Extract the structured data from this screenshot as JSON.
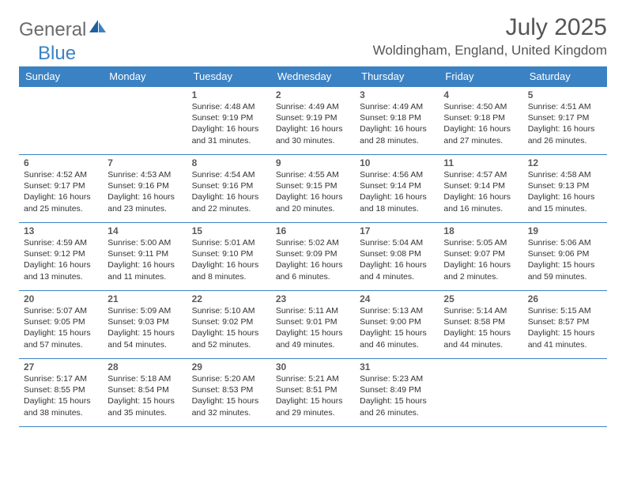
{
  "logo": {
    "text1": "General",
    "text2": "Blue"
  },
  "title": {
    "month_year": "July 2025",
    "location": "Woldingham, England, United Kingdom"
  },
  "colors": {
    "header_bg": "#3b82c4",
    "header_text": "#ffffff",
    "border": "#3b82c4",
    "body_text": "#333333",
    "title_text": "#555555",
    "logo_gray": "#6b6b6b",
    "logo_blue": "#3b82c4",
    "background": "#ffffff"
  },
  "typography": {
    "month_year_fontsize": 30,
    "location_fontsize": 17,
    "weekday_fontsize": 13,
    "daynum_fontsize": 12,
    "cell_fontsize": 10.5,
    "logo_fontsize": 24
  },
  "weekdays": [
    "Sunday",
    "Monday",
    "Tuesday",
    "Wednesday",
    "Thursday",
    "Friday",
    "Saturday"
  ],
  "weeks": [
    [
      null,
      null,
      {
        "day": "1",
        "sunrise": "Sunrise: 4:48 AM",
        "sunset": "Sunset: 9:19 PM",
        "daylight": "Daylight: 16 hours and 31 minutes."
      },
      {
        "day": "2",
        "sunrise": "Sunrise: 4:49 AM",
        "sunset": "Sunset: 9:19 PM",
        "daylight": "Daylight: 16 hours and 30 minutes."
      },
      {
        "day": "3",
        "sunrise": "Sunrise: 4:49 AM",
        "sunset": "Sunset: 9:18 PM",
        "daylight": "Daylight: 16 hours and 28 minutes."
      },
      {
        "day": "4",
        "sunrise": "Sunrise: 4:50 AM",
        "sunset": "Sunset: 9:18 PM",
        "daylight": "Daylight: 16 hours and 27 minutes."
      },
      {
        "day": "5",
        "sunrise": "Sunrise: 4:51 AM",
        "sunset": "Sunset: 9:17 PM",
        "daylight": "Daylight: 16 hours and 26 minutes."
      }
    ],
    [
      {
        "day": "6",
        "sunrise": "Sunrise: 4:52 AM",
        "sunset": "Sunset: 9:17 PM",
        "daylight": "Daylight: 16 hours and 25 minutes."
      },
      {
        "day": "7",
        "sunrise": "Sunrise: 4:53 AM",
        "sunset": "Sunset: 9:16 PM",
        "daylight": "Daylight: 16 hours and 23 minutes."
      },
      {
        "day": "8",
        "sunrise": "Sunrise: 4:54 AM",
        "sunset": "Sunset: 9:16 PM",
        "daylight": "Daylight: 16 hours and 22 minutes."
      },
      {
        "day": "9",
        "sunrise": "Sunrise: 4:55 AM",
        "sunset": "Sunset: 9:15 PM",
        "daylight": "Daylight: 16 hours and 20 minutes."
      },
      {
        "day": "10",
        "sunrise": "Sunrise: 4:56 AM",
        "sunset": "Sunset: 9:14 PM",
        "daylight": "Daylight: 16 hours and 18 minutes."
      },
      {
        "day": "11",
        "sunrise": "Sunrise: 4:57 AM",
        "sunset": "Sunset: 9:14 PM",
        "daylight": "Daylight: 16 hours and 16 minutes."
      },
      {
        "day": "12",
        "sunrise": "Sunrise: 4:58 AM",
        "sunset": "Sunset: 9:13 PM",
        "daylight": "Daylight: 16 hours and 15 minutes."
      }
    ],
    [
      {
        "day": "13",
        "sunrise": "Sunrise: 4:59 AM",
        "sunset": "Sunset: 9:12 PM",
        "daylight": "Daylight: 16 hours and 13 minutes."
      },
      {
        "day": "14",
        "sunrise": "Sunrise: 5:00 AM",
        "sunset": "Sunset: 9:11 PM",
        "daylight": "Daylight: 16 hours and 11 minutes."
      },
      {
        "day": "15",
        "sunrise": "Sunrise: 5:01 AM",
        "sunset": "Sunset: 9:10 PM",
        "daylight": "Daylight: 16 hours and 8 minutes."
      },
      {
        "day": "16",
        "sunrise": "Sunrise: 5:02 AM",
        "sunset": "Sunset: 9:09 PM",
        "daylight": "Daylight: 16 hours and 6 minutes."
      },
      {
        "day": "17",
        "sunrise": "Sunrise: 5:04 AM",
        "sunset": "Sunset: 9:08 PM",
        "daylight": "Daylight: 16 hours and 4 minutes."
      },
      {
        "day": "18",
        "sunrise": "Sunrise: 5:05 AM",
        "sunset": "Sunset: 9:07 PM",
        "daylight": "Daylight: 16 hours and 2 minutes."
      },
      {
        "day": "19",
        "sunrise": "Sunrise: 5:06 AM",
        "sunset": "Sunset: 9:06 PM",
        "daylight": "Daylight: 15 hours and 59 minutes."
      }
    ],
    [
      {
        "day": "20",
        "sunrise": "Sunrise: 5:07 AM",
        "sunset": "Sunset: 9:05 PM",
        "daylight": "Daylight: 15 hours and 57 minutes."
      },
      {
        "day": "21",
        "sunrise": "Sunrise: 5:09 AM",
        "sunset": "Sunset: 9:03 PM",
        "daylight": "Daylight: 15 hours and 54 minutes."
      },
      {
        "day": "22",
        "sunrise": "Sunrise: 5:10 AM",
        "sunset": "Sunset: 9:02 PM",
        "daylight": "Daylight: 15 hours and 52 minutes."
      },
      {
        "day": "23",
        "sunrise": "Sunrise: 5:11 AM",
        "sunset": "Sunset: 9:01 PM",
        "daylight": "Daylight: 15 hours and 49 minutes."
      },
      {
        "day": "24",
        "sunrise": "Sunrise: 5:13 AM",
        "sunset": "Sunset: 9:00 PM",
        "daylight": "Daylight: 15 hours and 46 minutes."
      },
      {
        "day": "25",
        "sunrise": "Sunrise: 5:14 AM",
        "sunset": "Sunset: 8:58 PM",
        "daylight": "Daylight: 15 hours and 44 minutes."
      },
      {
        "day": "26",
        "sunrise": "Sunrise: 5:15 AM",
        "sunset": "Sunset: 8:57 PM",
        "daylight": "Daylight: 15 hours and 41 minutes."
      }
    ],
    [
      {
        "day": "27",
        "sunrise": "Sunrise: 5:17 AM",
        "sunset": "Sunset: 8:55 PM",
        "daylight": "Daylight: 15 hours and 38 minutes."
      },
      {
        "day": "28",
        "sunrise": "Sunrise: 5:18 AM",
        "sunset": "Sunset: 8:54 PM",
        "daylight": "Daylight: 15 hours and 35 minutes."
      },
      {
        "day": "29",
        "sunrise": "Sunrise: 5:20 AM",
        "sunset": "Sunset: 8:53 PM",
        "daylight": "Daylight: 15 hours and 32 minutes."
      },
      {
        "day": "30",
        "sunrise": "Sunrise: 5:21 AM",
        "sunset": "Sunset: 8:51 PM",
        "daylight": "Daylight: 15 hours and 29 minutes."
      },
      {
        "day": "31",
        "sunrise": "Sunrise: 5:23 AM",
        "sunset": "Sunset: 8:49 PM",
        "daylight": "Daylight: 15 hours and 26 minutes."
      },
      null,
      null
    ]
  ]
}
